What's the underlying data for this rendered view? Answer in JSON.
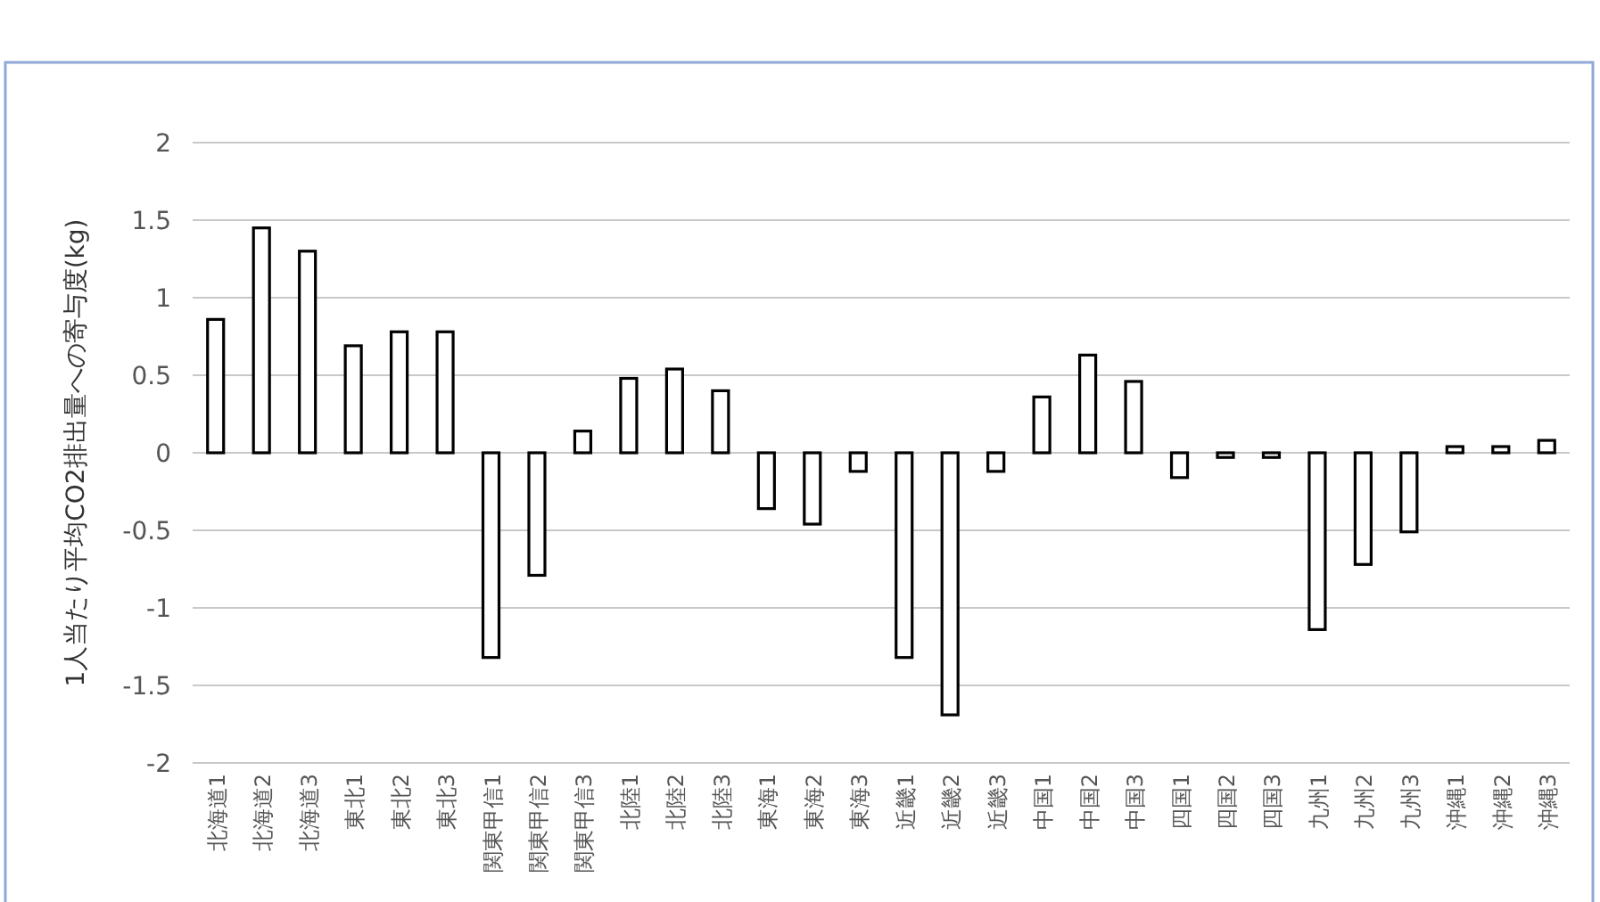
{
  "chart_data": {
    "type": "bar",
    "ylabel": "1人当たり平均CO2排出量への寄与度(kg)",
    "categories": [
      "北海道1",
      "北海道2",
      "北海道3",
      "東北1",
      "東北2",
      "東北3",
      "関東甲信1",
      "関東甲信2",
      "関東甲信3",
      "北陸1",
      "北陸2",
      "北陸3",
      "東海1",
      "東海2",
      "東海3",
      "近畿1",
      "近畿2",
      "近畿3",
      "中国1",
      "中国2",
      "中国3",
      "四国1",
      "四国2",
      "四国3",
      "九州1",
      "九州2",
      "九州3",
      "沖縄1",
      "沖縄2",
      "沖縄3"
    ],
    "series": [
      {
        "color": "#ffffff",
        "values": [
          0.86,
          1.45,
          1.3,
          0.69,
          0.78,
          0.78,
          -1.32,
          -0.79,
          0.14,
          0.48,
          0.54,
          0.4,
          -0.36,
          -0.46,
          -0.12,
          -1.32,
          -1.69,
          -0.12,
          0.36,
          0.63,
          0.46,
          -0.16,
          -0.03,
          -0.03,
          -1.14,
          -0.72,
          -0.51,
          0.04,
          0.04,
          0.08
        ]
      }
    ],
    "ylim": [
      -2,
      2
    ],
    "yticks": [
      -2,
      -1.5,
      -1,
      -0.5,
      0,
      0.5,
      1,
      1.5,
      2
    ],
    "grid": "y"
  }
}
